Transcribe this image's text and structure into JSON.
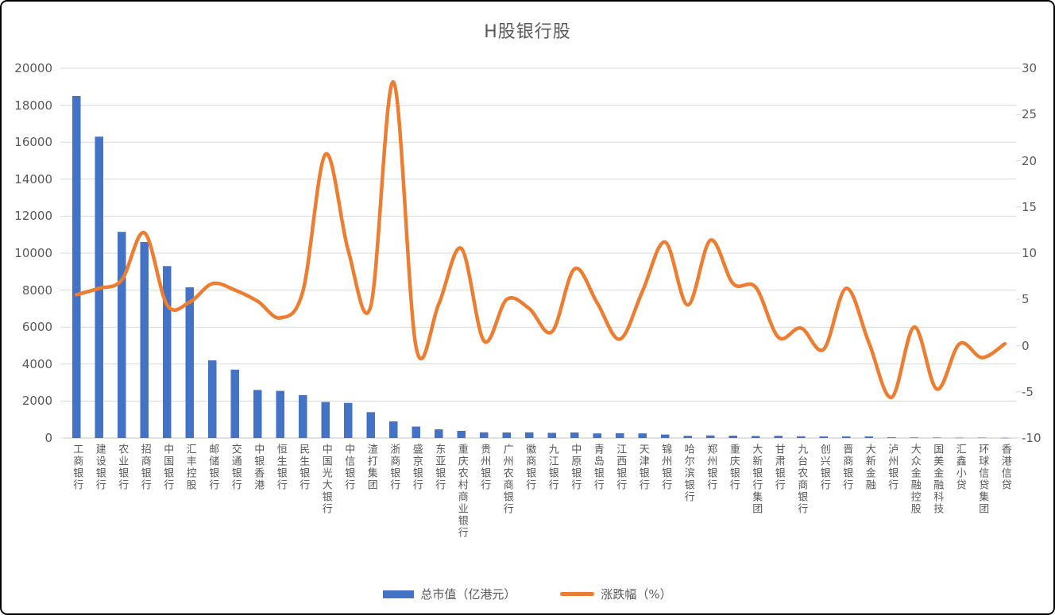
{
  "chart_data": {
    "type": "combo",
    "title": "H股银行股",
    "categories": [
      "工商银行",
      "建设银行",
      "农业银行",
      "招商银行",
      "中国银行",
      "汇丰控股",
      "邮储银行",
      "交通银行",
      "中银香港",
      "恒生银行",
      "民生银行",
      "中国光大银行",
      "中信银行",
      "渣打集团",
      "浙商银行",
      "盛京银行",
      "东亚银行",
      "重庆农村商业银行",
      "贵州银行",
      "广州农商银行",
      "徽商银行",
      "九江银行",
      "中原银行",
      "青岛银行",
      "江西银行",
      "天津银行",
      "锦州银行",
      "哈尔滨银行",
      "郑州银行",
      "重庆银行",
      "大新银行集团",
      "甘肃银行",
      "九台农商银行",
      "创兴银行",
      "晋商银行",
      "大新金融",
      "泸州银行",
      "大众金融控股",
      "国美金融科技",
      "汇鑫小贷",
      "环球信贷集团",
      "香港信贷"
    ],
    "series": [
      {
        "name": "总市值（亿港元）",
        "type": "bar",
        "axis": "left",
        "color": "#4472C4",
        "values": [
          18500,
          16300,
          11150,
          10600,
          9300,
          8150,
          4200,
          3700,
          2600,
          2550,
          2320,
          1950,
          1900,
          1400,
          900,
          620,
          470,
          390,
          310,
          300,
          310,
          280,
          300,
          250,
          260,
          250,
          190,
          120,
          140,
          130,
          110,
          120,
          95,
          90,
          90,
          85,
          40,
          30,
          25,
          15,
          20,
          10
        ]
      },
      {
        "name": "涨跌幅（%）",
        "type": "line",
        "axis": "right",
        "color": "#ED7D31",
        "values": [
          5.5,
          6.2,
          7.1,
          12.2,
          4.4,
          4.7,
          6.7,
          6.0,
          4.8,
          3.0,
          5.9,
          20.7,
          10.3,
          4.3,
          28.5,
          -0.2,
          4.5,
          10.5,
          0.5,
          5.0,
          4.0,
          1.5,
          8.3,
          4.6,
          0.7,
          5.9,
          11.2,
          4.4,
          11.4,
          6.7,
          6.3,
          0.9,
          1.9,
          -0.4,
          6.2,
          0.3,
          -5.6,
          2.0,
          -4.7,
          0.2,
          -1.3,
          0.2
        ]
      }
    ],
    "left_axis": {
      "min": 0,
      "max": 20000,
      "step": 2000,
      "ticks": [
        "0",
        "2000",
        "4000",
        "6000",
        "8000",
        "10000",
        "12000",
        "14000",
        "16000",
        "18000",
        "20000"
      ]
    },
    "right_axis": {
      "min": -10,
      "max": 30,
      "step": 5,
      "ticks": [
        "-10",
        "-5",
        "0",
        "5",
        "10",
        "15",
        "20",
        "25",
        "30"
      ]
    },
    "grid": true,
    "legend_position": "bottom"
  },
  "colors": {
    "bar": "#4472C4",
    "line": "#ED7D31",
    "text": "#595959",
    "gridline": "#D9D9D9",
    "axis_line": "#D9D9D9",
    "background": "#FFFFFF",
    "border": "#000000"
  }
}
